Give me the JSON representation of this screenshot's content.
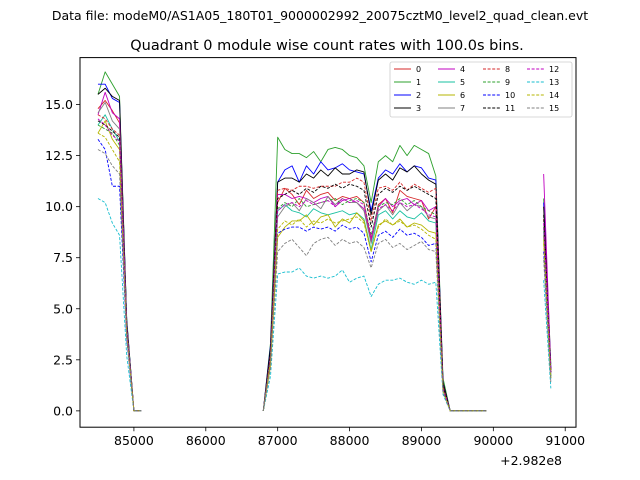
{
  "header": {
    "data_file": "Data file: modeM0/AS1A05_180T01_9000002992_20075cztM0_level2_quad_clean.evt"
  },
  "chart_data": {
    "type": "line",
    "title": "Quadrant 0 module wise count rates with 100.0s bins.",
    "xlabel": "",
    "ylabel": "",
    "x_offset_label": "+2.982e8",
    "xlim": [
      84250,
      91150
    ],
    "ylim": [
      -0.8,
      17.3
    ],
    "x_ticks": [
      85000,
      86000,
      87000,
      88000,
      89000,
      90000,
      91000
    ],
    "y_ticks": [
      0.0,
      2.5,
      5.0,
      7.5,
      10.0,
      12.5,
      15.0
    ],
    "x_tick_labels": [
      "85000",
      "86000",
      "87000",
      "88000",
      "89000",
      "90000",
      "91000"
    ],
    "y_tick_labels": [
      "0.0",
      "2.5",
      "5.0",
      "7.5",
      "10.0",
      "12.5",
      "15.0"
    ],
    "grid": false,
    "legend_position": "top-right",
    "x": [
      84500,
      84600,
      84700,
      84800,
      84900,
      85000,
      85100,
      85200,
      85300,
      85400,
      85500,
      85600,
      85700,
      85800,
      85900,
      86000,
      86100,
      86200,
      86300,
      86400,
      86500,
      86600,
      86700,
      86800,
      86900,
      87000,
      87100,
      87200,
      87300,
      87400,
      87500,
      87600,
      87700,
      87800,
      87900,
      88000,
      88100,
      88200,
      88300,
      88400,
      88500,
      88600,
      88700,
      88800,
      88900,
      89000,
      89100,
      89200,
      89300,
      89400,
      89500,
      89600,
      89700,
      89800,
      89900,
      90000,
      90100,
      90200,
      90300,
      90400,
      90500,
      90600,
      90700,
      90800
    ],
    "segments": [
      [
        0,
        6
      ],
      [
        23,
        54
      ],
      [
        62,
        63
      ],
      [
        63,
        64
      ]
    ],
    "series": [
      {
        "name": "0",
        "color": "#d62728",
        "dash": "solid",
        "values": [
          14.8,
          15.2,
          14.7,
          14.1,
          4.2,
          0,
          0,
          0,
          0,
          0,
          0,
          0,
          0,
          0,
          0,
          0,
          0,
          0,
          0,
          0,
          0,
          0,
          0,
          0,
          2.6,
          10.2,
          10.9,
          10.6,
          10.1,
          10.8,
          10.4,
          10.6,
          10.7,
          10.3,
          10.5,
          10.4,
          10.5,
          10.2,
          8.4,
          10.1,
          10.4,
          9.7,
          10.8,
          10.5,
          10.4,
          10.3,
          9.4,
          10.0,
          1.2,
          0,
          0,
          0,
          0,
          0,
          0,
          0,
          0,
          0,
          0,
          0,
          0,
          0,
          8.6,
          1.9
        ]
      },
      {
        "name": "1",
        "color": "#2ca02c",
        "dash": "solid",
        "values": [
          15.5,
          16.6,
          16.0,
          15.4,
          4.5,
          0,
          0,
          0,
          0,
          0,
          0,
          0,
          0,
          0,
          0,
          0,
          0,
          0,
          0,
          0,
          0,
          0,
          0,
          0,
          3.3,
          13.4,
          12.8,
          12.6,
          12.6,
          12.4,
          12.7,
          12.2,
          12.8,
          12.9,
          12.8,
          12.5,
          12.4,
          12.0,
          10.2,
          12.2,
          12.5,
          12.2,
          13.0,
          12.5,
          13.0,
          12.8,
          12.6,
          11.5,
          1.6,
          0,
          0,
          0,
          0,
          0,
          0,
          0,
          0,
          0,
          0,
          0,
          0,
          0,
          10.4,
          2.3
        ]
      },
      {
        "name": "2",
        "color": "#0000ff",
        "dash": "solid",
        "values": [
          16.0,
          16.0,
          15.3,
          15.1,
          4.4,
          0,
          0,
          0,
          0,
          0,
          0,
          0,
          0,
          0,
          0,
          0,
          0,
          0,
          0,
          0,
          0,
          0,
          0,
          0,
          3.2,
          11.2,
          11.8,
          12.0,
          11.2,
          12.0,
          11.6,
          12.2,
          11.8,
          11.9,
          12.1,
          11.8,
          11.7,
          11.6,
          9.8,
          11.4,
          11.8,
          11.6,
          12.1,
          11.7,
          12.0,
          11.9,
          11.4,
          11.3,
          1.4,
          0,
          0,
          0,
          0,
          0,
          0,
          0,
          0,
          0,
          0,
          0,
          0,
          0,
          10.2,
          2.1
        ]
      },
      {
        "name": "3",
        "color": "#000000",
        "dash": "solid",
        "values": [
          15.5,
          15.8,
          15.4,
          15.2,
          4.4,
          0,
          0,
          0,
          0,
          0,
          0,
          0,
          0,
          0,
          0,
          0,
          0,
          0,
          0,
          0,
          0,
          0,
          0,
          0,
          3.1,
          11.2,
          11.4,
          11.4,
          11.2,
          11.6,
          11.4,
          11.8,
          11.5,
          11.9,
          11.6,
          11.6,
          11.8,
          11.7,
          9.6,
          11.3,
          11.6,
          11.3,
          11.9,
          11.7,
          12.0,
          11.6,
          11.3,
          11.1,
          1.4,
          0,
          0,
          0,
          0,
          0,
          0,
          0,
          0,
          0,
          0,
          0,
          0,
          0,
          10.0,
          2.0
        ]
      },
      {
        "name": "4",
        "color": "#c000c0",
        "dash": "solid",
        "values": [
          14.5,
          15.6,
          14.6,
          14.3,
          4.2,
          0,
          0,
          0,
          0,
          0,
          0,
          0,
          0,
          0,
          0,
          0,
          0,
          0,
          0,
          0,
          0,
          0,
          0,
          0,
          2.7,
          10.6,
          10.6,
          10.4,
          10.5,
          10.4,
          10.2,
          10.4,
          10.5,
          10.0,
          10.3,
          10.4,
          10.2,
          9.9,
          8.3,
          10.0,
          10.4,
          10.0,
          10.3,
          10.4,
          10.1,
          10.3,
          9.8,
          10.0,
          1.2,
          0,
          0,
          0,
          0,
          0,
          0,
          0,
          0,
          0,
          0,
          0,
          0,
          0,
          11.6,
          2.0
        ]
      },
      {
        "name": "5",
        "color": "#17c0a0",
        "dash": "solid",
        "values": [
          14.0,
          14.5,
          13.8,
          13.2,
          4.0,
          0,
          0,
          0,
          0,
          0,
          0,
          0,
          0,
          0,
          0,
          0,
          0,
          0,
          0,
          0,
          0,
          0,
          0,
          0,
          2.5,
          9.8,
          10.1,
          9.8,
          9.7,
          9.5,
          9.9,
          9.7,
          9.6,
          9.7,
          9.8,
          9.6,
          9.7,
          9.4,
          7.9,
          9.6,
          9.8,
          9.4,
          9.8,
          9.5,
          9.4,
          9.7,
          9.3,
          9.2,
          1.1,
          0,
          0,
          0,
          0,
          0,
          0,
          0,
          0,
          0,
          0,
          0,
          0,
          0,
          8.8,
          1.7
        ]
      },
      {
        "name": "6",
        "color": "#b5b500",
        "dash": "solid",
        "values": [
          13.6,
          14.2,
          13.3,
          12.8,
          3.9,
          0,
          0,
          0,
          0,
          0,
          0,
          0,
          0,
          0,
          0,
          0,
          0,
          0,
          0,
          0,
          0,
          0,
          0,
          0,
          2.2,
          8.5,
          9.0,
          9.3,
          9.3,
          9.6,
          9.1,
          9.5,
          9.6,
          9.0,
          9.4,
          9.2,
          9.7,
          9.3,
          7.8,
          9.1,
          9.3,
          9.1,
          9.4,
          9.0,
          9.2,
          9.1,
          8.8,
          8.7,
          1.0,
          0,
          0,
          0,
          0,
          0,
          0,
          0,
          0,
          0,
          0,
          0,
          0,
          0,
          8.4,
          1.6
        ]
      },
      {
        "name": "7",
        "color": "#808080",
        "dash": "solid",
        "values": [
          14.6,
          15.1,
          14.2,
          13.8,
          4.1,
          0,
          0,
          0,
          0,
          0,
          0,
          0,
          0,
          0,
          0,
          0,
          0,
          0,
          0,
          0,
          0,
          0,
          0,
          0,
          2.6,
          9.5,
          10.0,
          10.2,
          9.8,
          10.4,
          10.2,
          9.9,
          10.5,
          10.1,
          10.4,
          10.2,
          10.2,
          9.8,
          8.2,
          9.8,
          10.1,
          9.6,
          10.2,
          9.8,
          10.1,
          10.0,
          9.5,
          9.4,
          1.1,
          0,
          0,
          0,
          0,
          0,
          0,
          0,
          0,
          0,
          0,
          0,
          0,
          0,
          9.0,
          1.8
        ]
      },
      {
        "name": "8",
        "color": "#d62728",
        "dash": "dashed",
        "values": [
          14.5,
          14.3,
          13.8,
          13.5,
          4.0,
          0,
          0,
          0,
          0,
          0,
          0,
          0,
          0,
          0,
          0,
          0,
          0,
          0,
          0,
          0,
          0,
          0,
          0,
          0,
          2.7,
          10.8,
          10.9,
          10.8,
          11.0,
          11.0,
          10.9,
          11.0,
          11.0,
          11.0,
          11.2,
          11.2,
          11.4,
          11.2,
          9.3,
          10.9,
          11.0,
          10.8,
          11.2,
          10.8,
          11.1,
          10.9,
          10.7,
          10.9,
          1.2,
          0,
          0,
          0,
          0,
          0,
          0,
          0,
          0,
          0,
          0,
          0,
          0,
          0,
          9.4,
          1.9
        ]
      },
      {
        "name": "9",
        "color": "#2ca02c",
        "dash": "dashed",
        "values": [
          14.0,
          13.8,
          13.6,
          13.0,
          3.9,
          0,
          0,
          0,
          0,
          0,
          0,
          0,
          0,
          0,
          0,
          0,
          0,
          0,
          0,
          0,
          0,
          0,
          0,
          0,
          2.4,
          9.9,
          10.2,
          10.0,
          10.4,
          10.0,
          10.1,
          10.2,
          10.3,
          10.4,
          10.1,
          10.3,
          10.4,
          10.2,
          8.6,
          10.0,
          10.2,
          10.1,
          10.4,
          10.1,
          10.3,
          10.0,
          9.8,
          9.6,
          1.1,
          0,
          0,
          0,
          0,
          0,
          0,
          0,
          0,
          0,
          0,
          0,
          0,
          0,
          9.0,
          1.7
        ]
      },
      {
        "name": "10",
        "color": "#0000ff",
        "dash": "dashed",
        "values": [
          13.3,
          12.8,
          11.0,
          11.0,
          3.5,
          0,
          0,
          0,
          0,
          0,
          0,
          0,
          0,
          0,
          0,
          0,
          0,
          0,
          0,
          0,
          0,
          0,
          0,
          0,
          2.3,
          8.7,
          8.9,
          9.0,
          9.0,
          8.8,
          9.0,
          8.9,
          9.0,
          8.8,
          9.1,
          8.9,
          9.0,
          8.7,
          7.3,
          8.6,
          8.8,
          8.5,
          8.9,
          8.6,
          8.7,
          8.5,
          8.1,
          8.2,
          1.0,
          0,
          0,
          0,
          0,
          0,
          0,
          0,
          0,
          0,
          0,
          0,
          0,
          0,
          7.8,
          1.5
        ]
      },
      {
        "name": "11",
        "color": "#000000",
        "dash": "dashed",
        "values": [
          14.2,
          14.0,
          13.7,
          13.4,
          4.0,
          0,
          0,
          0,
          0,
          0,
          0,
          0,
          0,
          0,
          0,
          0,
          0,
          0,
          0,
          0,
          0,
          0,
          0,
          0,
          2.6,
          10.4,
          10.6,
          10.8,
          10.6,
          10.9,
          10.7,
          11.0,
          10.9,
          11.1,
          10.9,
          11.1,
          11.0,
          10.8,
          9.0,
          10.6,
          10.9,
          10.7,
          11.0,
          10.8,
          11.0,
          10.8,
          10.6,
          10.4,
          1.2,
          0,
          0,
          0,
          0,
          0,
          0,
          0,
          0,
          0,
          0,
          0,
          0,
          0,
          9.6,
          1.9
        ]
      },
      {
        "name": "12",
        "color": "#c000c0",
        "dash": "dashed",
        "values": [
          14.3,
          14.0,
          13.5,
          13.2,
          3.9,
          0,
          0,
          0,
          0,
          0,
          0,
          0,
          0,
          0,
          0,
          0,
          0,
          0,
          0,
          0,
          0,
          0,
          0,
          0,
          2.5,
          9.8,
          10.1,
          10.2,
          10.0,
          10.3,
          10.1,
          10.2,
          10.3,
          10.0,
          10.4,
          10.2,
          10.3,
          10.1,
          8.5,
          9.9,
          10.1,
          9.8,
          10.2,
          10.0,
          10.1,
          9.9,
          9.6,
          9.5,
          1.1,
          0,
          0,
          0,
          0,
          0,
          0,
          0,
          0,
          0,
          0,
          0,
          0,
          0,
          9.2,
          1.8
        ]
      },
      {
        "name": "13",
        "color": "#17becf",
        "dash": "dashed",
        "values": [
          10.4,
          10.2,
          9.2,
          8.6,
          2.7,
          0,
          0,
          0,
          0,
          0,
          0,
          0,
          0,
          0,
          0,
          0,
          0,
          0,
          0,
          0,
          0,
          0,
          0,
          0,
          1.7,
          6.7,
          6.8,
          6.8,
          7.0,
          6.6,
          6.5,
          6.6,
          6.5,
          6.6,
          6.9,
          6.3,
          6.5,
          6.6,
          5.6,
          6.2,
          6.4,
          6.4,
          6.5,
          6.3,
          6.2,
          6.4,
          6.2,
          6.3,
          0.8,
          0,
          0,
          0,
          0,
          0,
          0,
          0,
          0,
          0,
          0,
          0,
          0,
          0,
          6.4,
          1.1
        ]
      },
      {
        "name": "14",
        "color": "#b5b500",
        "dash": "dashed",
        "values": [
          13.6,
          13.4,
          12.8,
          12.2,
          3.7,
          0,
          0,
          0,
          0,
          0,
          0,
          0,
          0,
          0,
          0,
          0,
          0,
          0,
          0,
          0,
          0,
          0,
          0,
          0,
          2.4,
          8.9,
          9.3,
          9.1,
          9.4,
          9.0,
          9.3,
          9.2,
          9.4,
          9.2,
          9.3,
          9.4,
          9.5,
          9.2,
          7.8,
          9.0,
          9.4,
          9.1,
          9.3,
          9.0,
          9.1,
          8.9,
          8.6,
          8.4,
          1.0,
          0,
          0,
          0,
          0,
          0,
          0,
          0,
          0,
          0,
          0,
          0,
          0,
          0,
          8.2,
          1.6
        ]
      },
      {
        "name": "15",
        "color": "#808080",
        "dash": "dashed",
        "values": [
          12.8,
          12.6,
          12.0,
          11.6,
          3.6,
          0,
          0,
          0,
          0,
          0,
          0,
          0,
          0,
          0,
          0,
          0,
          0,
          0,
          0,
          0,
          0,
          0,
          0,
          0,
          2.1,
          7.8,
          8.2,
          8.4,
          8.0,
          7.6,
          8.2,
          8.4,
          8.5,
          8.1,
          8.4,
          8.2,
          8.3,
          8.0,
          7.0,
          8.2,
          8.4,
          8.0,
          8.2,
          7.9,
          8.1,
          8.3,
          7.9,
          7.8,
          0.9,
          0,
          0,
          0,
          0,
          0,
          0,
          0,
          0,
          0,
          0,
          0,
          0,
          0,
          7.4,
          1.4
        ]
      }
    ]
  }
}
